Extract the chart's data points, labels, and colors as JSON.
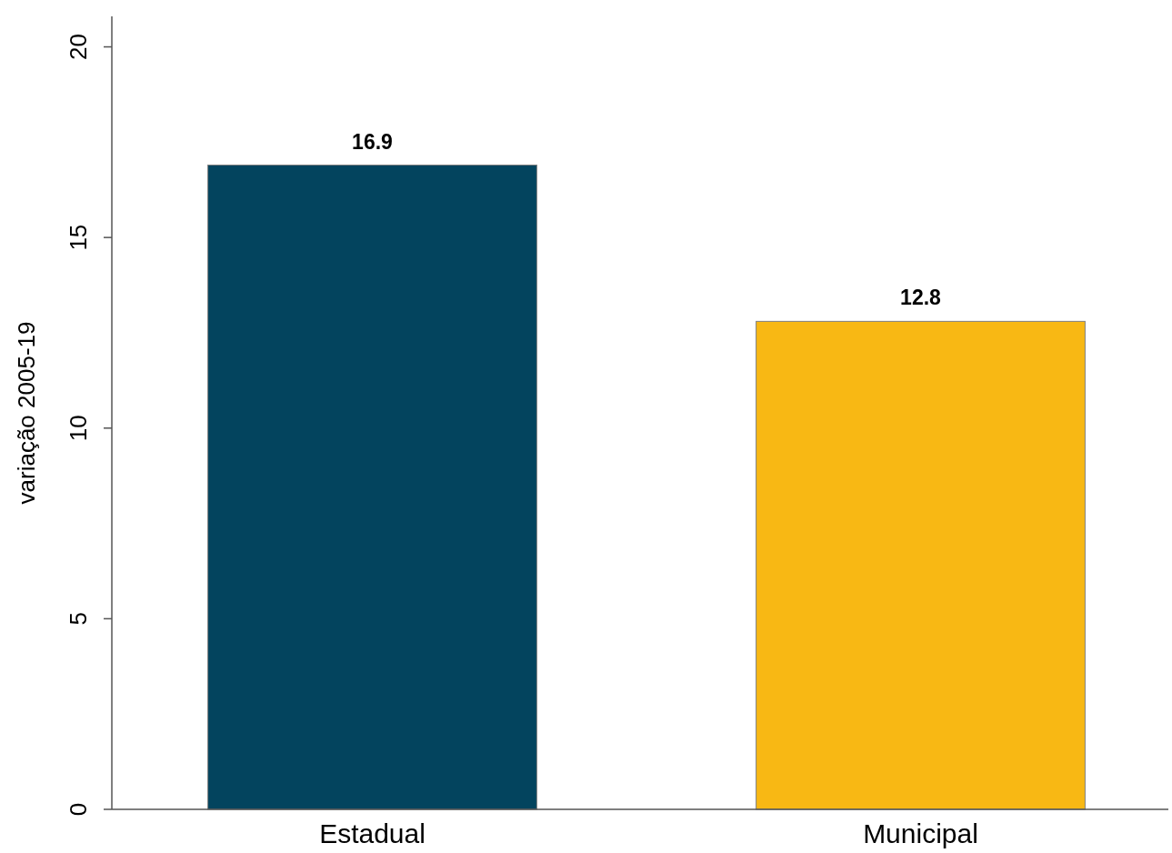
{
  "chart_data": {
    "type": "bar",
    "ylabel": "variação 2005-19",
    "categories": [
      "Estadual",
      "Municipal"
    ],
    "values": [
      16.9,
      12.8
    ],
    "colors": [
      "#03445e",
      "#f8b814"
    ],
    "ylim": [
      0,
      20.8
    ],
    "yticks": [
      0,
      5,
      10,
      15,
      20
    ],
    "data_labels": true
  }
}
